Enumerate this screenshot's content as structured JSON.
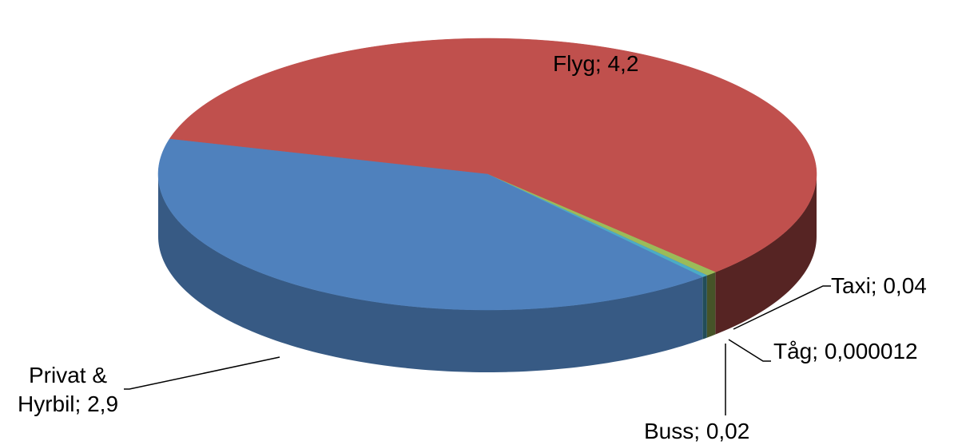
{
  "chart_data": {
    "type": "pie",
    "three_d": true,
    "categories": [
      "Flyg",
      "Taxi",
      "Tåg",
      "Buss",
      "Privat & Hyrbil"
    ],
    "values": [
      4.2,
      0.04,
      1.2e-05,
      0.02,
      2.9
    ],
    "value_labels": [
      "4,2",
      "0,04",
      "0,000012",
      "0,02",
      "2,9"
    ],
    "label_separator": "; ",
    "colors": [
      "#c0504d",
      "#9bbb59",
      "#8064a2",
      "#4bacc6",
      "#4f81bd"
    ]
  }
}
